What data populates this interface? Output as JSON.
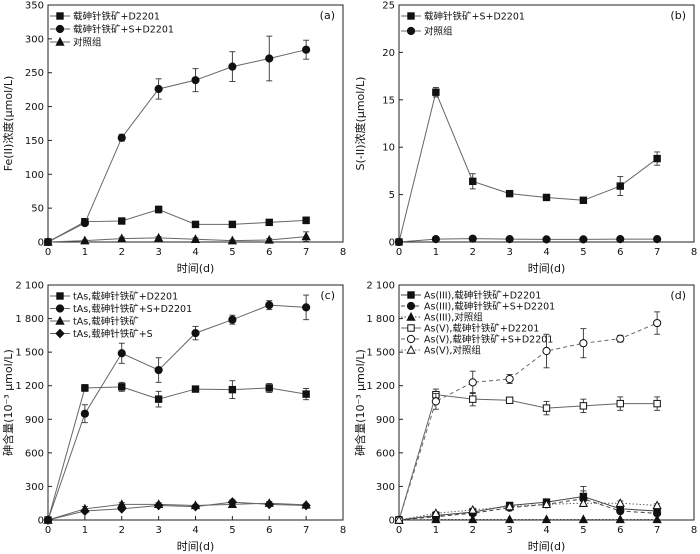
{
  "chart_data": [
    {
      "type": "line",
      "panel_label": "(a)",
      "xlabel": "时间(d)",
      "ylabel": "Fe(II)浓度(μmol/L)",
      "xlim": [
        0,
        8
      ],
      "ylim": [
        0,
        350
      ],
      "xticks": [
        "0",
        "1",
        "2",
        "3",
        "4",
        "5",
        "6",
        "7",
        "8"
      ],
      "yticks": [
        "0",
        "50",
        "100",
        "150",
        "200",
        "250",
        "300",
        "350"
      ],
      "legend_position": "top-left",
      "series": [
        {
          "name": "载砷针铁矿+D2201",
          "marker": "square",
          "filled": true,
          "dash": "solid",
          "color": "#666666",
          "x": [
            0,
            1,
            2,
            3,
            4,
            5,
            6,
            7
          ],
          "y": [
            0,
            30,
            31,
            48,
            26,
            26,
            29,
            32
          ],
          "err": [
            0,
            3,
            4,
            5,
            4,
            4,
            4,
            5
          ]
        },
        {
          "name": "载砷针铁矿+S+D2201",
          "marker": "circle",
          "filled": true,
          "dash": "solid",
          "color": "#666666",
          "x": [
            0,
            1,
            2,
            3,
            4,
            5,
            6,
            7
          ],
          "y": [
            0,
            28,
            154,
            226,
            239,
            259,
            271,
            284
          ],
          "err": [
            0,
            3,
            5,
            15,
            17,
            22,
            33,
            14
          ]
        },
        {
          "name": "对照组",
          "marker": "triangle",
          "filled": true,
          "dash": "solid",
          "color": "#666666",
          "x": [
            0,
            1,
            2,
            3,
            4,
            5,
            6,
            7
          ],
          "y": [
            0,
            2,
            5,
            6,
            4,
            2,
            3,
            8
          ],
          "err": [
            0,
            1,
            2,
            2,
            2,
            1,
            2,
            7
          ]
        }
      ]
    },
    {
      "type": "line",
      "panel_label": "(b)",
      "xlabel": "时间(d)",
      "ylabel": "S(-II)浓度(μmol/L)",
      "xlim": [
        0,
        8
      ],
      "ylim": [
        0,
        25
      ],
      "xticks": [
        "0",
        "1",
        "2",
        "3",
        "4",
        "5",
        "6",
        "7",
        "8"
      ],
      "yticks": [
        "0",
        "5",
        "10",
        "15",
        "20",
        "25"
      ],
      "legend_position": "top-left",
      "series": [
        {
          "name": "载砷针铁矿+S+D2201",
          "marker": "square",
          "filled": true,
          "dash": "solid",
          "color": "#666666",
          "x": [
            0,
            1,
            2,
            3,
            4,
            5,
            6,
            7
          ],
          "y": [
            0,
            15.8,
            6.4,
            5.1,
            4.7,
            4.4,
            5.9,
            8.8
          ],
          "err": [
            0,
            0.5,
            0.8,
            0.2,
            0.2,
            0.3,
            1.0,
            0.7
          ]
        },
        {
          "name": "对照组",
          "marker": "circle",
          "filled": true,
          "dash": "solid",
          "color": "#666666",
          "x": [
            0,
            1,
            2,
            3,
            4,
            5,
            6,
            7
          ],
          "y": [
            0,
            0.3,
            0.35,
            0.3,
            0.28,
            0.28,
            0.3,
            0.3
          ],
          "err": [
            0,
            0,
            0,
            0,
            0,
            0,
            0,
            0
          ]
        }
      ]
    },
    {
      "type": "line",
      "panel_label": "(c)",
      "xlabel": "时间(d)",
      "ylabel": "砷含量(10⁻³ μmol/L)",
      "xlim": [
        0,
        8
      ],
      "ylim": [
        0,
        2100
      ],
      "xticks": [
        "0",
        "1",
        "2",
        "3",
        "4",
        "5",
        "6",
        "7",
        "8"
      ],
      "yticks": [
        "0",
        "300",
        "600",
        "900",
        "1 200",
        "1 500",
        "1 800",
        "2 100"
      ],
      "legend_position": "top-left",
      "series": [
        {
          "name": "tAs,载砷针铁矿+D2201",
          "marker": "square",
          "filled": true,
          "dash": "solid",
          "color": "#666666",
          "x": [
            0,
            1,
            2,
            3,
            4,
            5,
            6,
            7
          ],
          "y": [
            0,
            1180,
            1190,
            1080,
            1170,
            1165,
            1180,
            1125
          ],
          "err": [
            0,
            30,
            40,
            70,
            20,
            80,
            40,
            50
          ]
        },
        {
          "name": "tAs,载砷针铁矿+S+D2201",
          "marker": "circle",
          "filled": true,
          "dash": "solid",
          "color": "#666666",
          "x": [
            0,
            1,
            2,
            3,
            4,
            5,
            6,
            7
          ],
          "y": [
            0,
            950,
            1490,
            1340,
            1670,
            1790,
            1920,
            1900
          ],
          "err": [
            0,
            80,
            90,
            110,
            60,
            40,
            40,
            110
          ]
        },
        {
          "name": "tAs,载砷针铁矿",
          "marker": "triangle",
          "filled": true,
          "dash": "solid",
          "color": "#666666",
          "x": [
            0,
            1,
            2,
            3,
            4,
            5,
            6,
            7
          ],
          "y": [
            0,
            100,
            140,
            140,
            130,
            140,
            150,
            135
          ],
          "err": [
            0,
            20,
            15,
            15,
            10,
            15,
            15,
            10
          ]
        },
        {
          "name": "tAs,载砷针铁矿+S",
          "marker": "diamond",
          "filled": true,
          "dash": "solid",
          "color": "#666666",
          "x": [
            0,
            1,
            2,
            3,
            4,
            5,
            6,
            7
          ],
          "y": [
            0,
            80,
            100,
            130,
            120,
            160,
            140,
            130
          ],
          "err": [
            0,
            15,
            15,
            15,
            10,
            20,
            15,
            10
          ]
        }
      ]
    },
    {
      "type": "line",
      "panel_label": "(d)",
      "xlabel": "时间(d)",
      "ylabel": "砷含量(10⁻³ μmol/L)",
      "xlim": [
        0,
        8
      ],
      "ylim": [
        0,
        2100
      ],
      "xticks": [
        "0",
        "1",
        "2",
        "3",
        "4",
        "5",
        "6",
        "7",
        "8"
      ],
      "yticks": [
        "0",
        "300",
        "600",
        "900",
        "1 200",
        "1 500",
        "1 800",
        "2 100"
      ],
      "legend_position": "top-left",
      "series": [
        {
          "name": "As(III),载砷针铁矿+D2201",
          "marker": "square",
          "filled": true,
          "dash": "solid",
          "color": "#444444",
          "x": [
            0,
            1,
            2,
            3,
            4,
            5,
            6,
            7
          ],
          "y": [
            0,
            40,
            70,
            130,
            160,
            210,
            100,
            80
          ],
          "err": [
            0,
            10,
            15,
            15,
            20,
            90,
            20,
            20
          ]
        },
        {
          "name": "As(III),载砷针铁矿+S+D2201",
          "marker": "circle",
          "filled": true,
          "dash": "dashed",
          "color": "#444444",
          "x": [
            0,
            1,
            2,
            3,
            4,
            5,
            6,
            7
          ],
          "y": [
            0,
            30,
            60,
            110,
            140,
            190,
            80,
            60
          ],
          "err": [
            0,
            10,
            15,
            15,
            20,
            70,
            20,
            15
          ]
        },
        {
          "name": "As(III),对照组",
          "marker": "triangle",
          "filled": true,
          "dash": "dotted",
          "color": "#444444",
          "x": [
            0,
            1,
            2,
            3,
            4,
            5,
            6,
            7
          ],
          "y": [
            0,
            5,
            5,
            5,
            5,
            5,
            5,
            5
          ],
          "err": [
            0,
            0,
            0,
            0,
            0,
            0,
            0,
            0
          ]
        },
        {
          "name": "As(V),载砷针铁矿+D2201",
          "marker": "square",
          "filled": false,
          "dash": "solid",
          "color": "#666666",
          "x": [
            0,
            1,
            2,
            3,
            4,
            5,
            6,
            7
          ],
          "y": [
            0,
            1120,
            1080,
            1070,
            1000,
            1020,
            1040,
            1040
          ],
          "err": [
            0,
            50,
            60,
            20,
            60,
            60,
            60,
            60
          ]
        },
        {
          "name": "As(V),载砷针铁矿+S+D2201",
          "marker": "circle",
          "filled": false,
          "dash": "dashed",
          "color": "#666666",
          "x": [
            0,
            1,
            2,
            3,
            4,
            5,
            6,
            7
          ],
          "y": [
            0,
            1060,
            1230,
            1260,
            1510,
            1580,
            1620,
            1760
          ],
          "err": [
            0,
            70,
            100,
            40,
            150,
            130,
            30,
            100
          ]
        },
        {
          "name": "As(V),对照组",
          "marker": "triangle",
          "filled": false,
          "dash": "dotted",
          "color": "#666666",
          "x": [
            0,
            1,
            2,
            3,
            4,
            5,
            6,
            7
          ],
          "y": [
            0,
            60,
            90,
            120,
            140,
            150,
            150,
            130
          ],
          "err": [
            0,
            15,
            15,
            15,
            15,
            20,
            20,
            15
          ]
        }
      ]
    }
  ]
}
